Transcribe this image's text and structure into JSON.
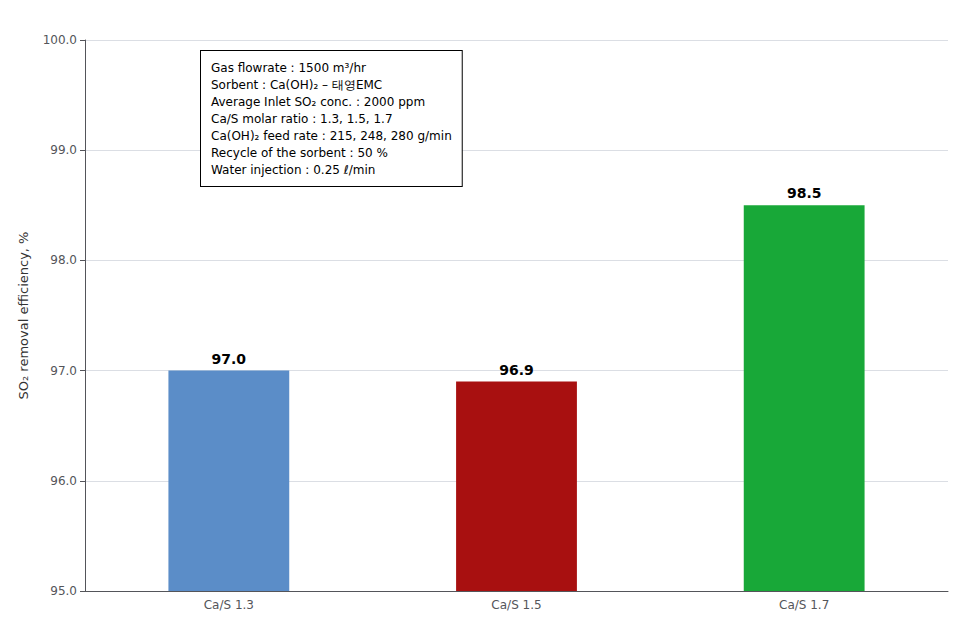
{
  "chart_data": {
    "type": "bar",
    "ylabel": "SO₂ removal efficiency, %",
    "categories": [
      "Ca/S 1.3",
      "Ca/S 1.5",
      "Ca/S 1.7"
    ],
    "values": [
      97.0,
      96.9,
      98.5
    ],
    "value_labels": [
      "97.0",
      "96.9",
      "98.5"
    ],
    "colors": [
      "#5b8dc8",
      "#a81010",
      "#18a838"
    ],
    "ylim": [
      95.0,
      100.0
    ],
    "yticks": [
      {
        "value": 95.0,
        "label": "95.0"
      },
      {
        "value": 96.0,
        "label": "96.0"
      },
      {
        "value": 97.0,
        "label": "97.0"
      },
      {
        "value": 98.0,
        "label": "98.0"
      },
      {
        "value": 99.0,
        "label": "99.0"
      },
      {
        "value": 100.0,
        "label": "100.0"
      }
    ],
    "grid": true,
    "data_labels": true,
    "annotation": "Gas flowrate : 1500 m³/hr\nSorbent : Ca(OH)₂ – 태영EMC\nAverage Inlet SO₂ conc. : 2000 ppm\nCa/S molar ratio : 1.3, 1.5, 1.7\nCa(OH)₂ feed rate : 215, 248, 280 g/min\nRecycle of the sorbent : 50 %\nWater injection : 0.25 ℓ/min"
  }
}
